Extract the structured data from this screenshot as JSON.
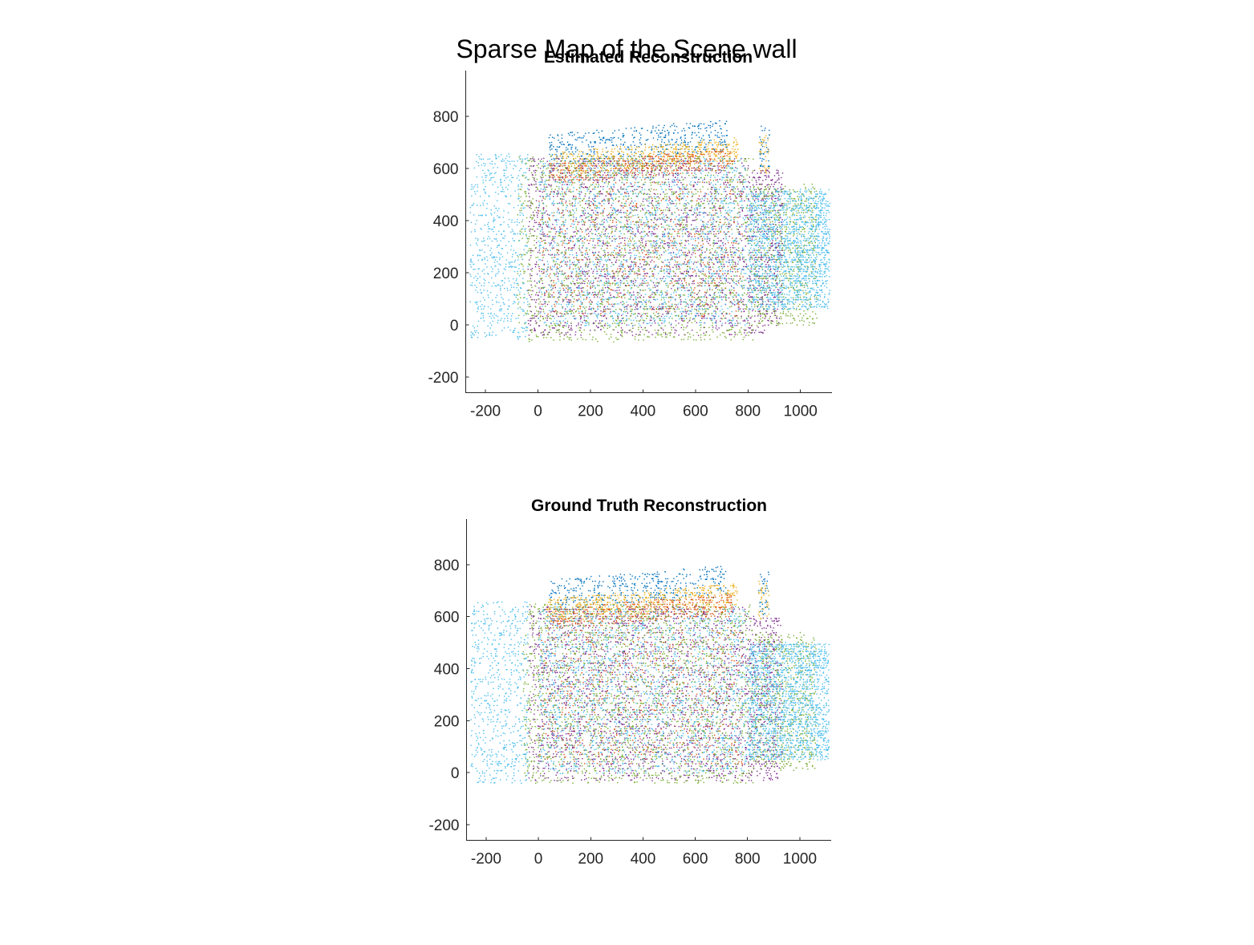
{
  "figure": {
    "suptitle": "Sparse Map of the Scene wall"
  },
  "chart_data": [
    {
      "type": "scatter",
      "title": "Estimated Reconstruction",
      "xlabel": "",
      "ylabel": "",
      "xlim": [
        -275,
        1120
      ],
      "ylim": [
        -260,
        975
      ],
      "xticks": [
        -200,
        0,
        200,
        400,
        600,
        800,
        1000
      ],
      "yticks": [
        -200,
        0,
        200,
        400,
        600,
        800
      ],
      "xtick_labels": [
        "-200",
        "0",
        "200",
        "400",
        "600",
        "800",
        "1000"
      ],
      "ytick_labels": [
        "-200",
        "0",
        "200",
        "400",
        "600",
        "800"
      ],
      "grid": false,
      "legend": "none",
      "box": "left-bottom axes only",
      "series": [
        {
          "color": "#0072BD",
          "regions": [
            {
              "x": [
                40,
                720
              ],
              "y": [
                640,
                760
              ],
              "slope": 0.16,
              "n": 450
            },
            {
              "x": [
                840,
                880
              ],
              "y": [
                600,
                770
              ],
              "n": 40
            }
          ]
        },
        {
          "color": "#EDB120",
          "regions": [
            {
              "x": [
                40,
                760
              ],
              "y": [
                600,
                690
              ],
              "slope": 0.16,
              "n": 600
            },
            {
              "x": [
                840,
                880
              ],
              "y": [
                580,
                730
              ],
              "n": 40
            }
          ]
        },
        {
          "color": "#D95319",
          "regions": [
            {
              "x": [
                40,
                740
              ],
              "y": [
                570,
                650
              ],
              "slope": 0.16,
              "n": 500
            },
            {
              "x": [
                0,
                780
              ],
              "y": [
                30,
                560
              ],
              "n": 700
            }
          ]
        },
        {
          "color": "#7E2F8E",
          "regions": [
            {
              "x": [
                -40,
                800
              ],
              "y": [
                -40,
                640
              ],
              "n": 2100
            },
            {
              "x": [
                800,
                930
              ],
              "y": [
                -30,
                600
              ],
              "n": 500
            }
          ]
        },
        {
          "color": "#77AC30",
          "regions": [
            {
              "x": [
                -80,
                820
              ],
              "y": [
                -60,
                650
              ],
              "n": 2000
            },
            {
              "x": [
                820,
                1060
              ],
              "y": [
                0,
                540
              ],
              "n": 700
            }
          ]
        },
        {
          "color": "#4DBEEE",
          "regions": [
            {
              "x": [
                -260,
                -40
              ],
              "y": [
                -50,
                660
              ],
              "n": 650
            },
            {
              "x": [
                0,
                800
              ],
              "y": [
                0,
                640
              ],
              "n": 1800
            },
            {
              "x": [
                800,
                1110
              ],
              "y": [
                60,
                520
              ],
              "n": 1700
            }
          ]
        }
      ]
    },
    {
      "type": "scatter",
      "title": "Ground Truth Reconstruction",
      "xlabel": "",
      "ylabel": "",
      "xlim": [
        -275,
        1120
      ],
      "ylim": [
        -260,
        975
      ],
      "xticks": [
        -200,
        0,
        200,
        400,
        600,
        800,
        1000
      ],
      "yticks": [
        -200,
        0,
        200,
        400,
        600,
        800
      ],
      "xtick_labels": [
        "-200",
        "0",
        "200",
        "400",
        "600",
        "800",
        "1000"
      ],
      "ytick_labels": [
        "-200",
        "0",
        "200",
        "400",
        "600",
        "800"
      ],
      "grid": false,
      "legend": "none",
      "box": "left-bottom axes only",
      "series": [
        {
          "color": "#0072BD",
          "regions": [
            {
              "x": [
                40,
                720
              ],
              "y": [
                650,
                770
              ],
              "slope": 0.16,
              "n": 450
            },
            {
              "x": [
                840,
                880
              ],
              "y": [
                610,
                780
              ],
              "n": 40
            }
          ]
        },
        {
          "color": "#EDB120",
          "regions": [
            {
              "x": [
                30,
                760
              ],
              "y": [
                610,
                700
              ],
              "slope": 0.16,
              "n": 600
            },
            {
              "x": [
                840,
                880
              ],
              "y": [
                590,
                740
              ],
              "n": 40
            }
          ]
        },
        {
          "color": "#D95319",
          "regions": [
            {
              "x": [
                30,
                740
              ],
              "y": [
                580,
                660
              ],
              "slope": 0.16,
              "n": 500
            },
            {
              "x": [
                0,
                780
              ],
              "y": [
                30,
                560
              ],
              "n": 700
            }
          ]
        },
        {
          "color": "#7E2F8E",
          "regions": [
            {
              "x": [
                -40,
                800
              ],
              "y": [
                -30,
                640
              ],
              "n": 2100
            },
            {
              "x": [
                800,
                930
              ],
              "y": [
                -30,
                600
              ],
              "n": 500
            }
          ]
        },
        {
          "color": "#77AC30",
          "regions": [
            {
              "x": [
                -60,
                820
              ],
              "y": [
                -40,
                650
              ],
              "n": 2000
            },
            {
              "x": [
                820,
                1060
              ],
              "y": [
                10,
                540
              ],
              "n": 700
            }
          ]
        },
        {
          "color": "#4DBEEE",
          "regions": [
            {
              "x": [
                -260,
                -40
              ],
              "y": [
                -40,
                660
              ],
              "n": 650
            },
            {
              "x": [
                0,
                800
              ],
              "y": [
                0,
                640
              ],
              "n": 1800
            },
            {
              "x": [
                800,
                1110
              ],
              "y": [
                50,
                500
              ],
              "n": 1700
            }
          ]
        }
      ]
    }
  ]
}
